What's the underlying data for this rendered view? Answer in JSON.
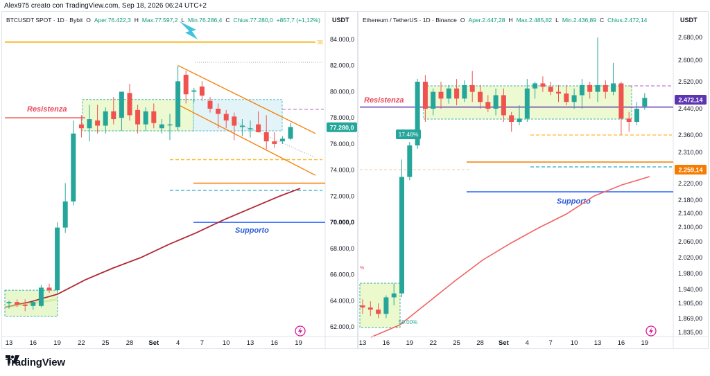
{
  "header": {
    "credit": "Alex975 creato con TradingView.com, Sep 18, 2026 06:24 UTC+2"
  },
  "footer": {
    "brand": "TradingView"
  },
  "colors": {
    "up": "#26a69a",
    "down": "#ef5350",
    "resistance": "#ef5350",
    "support": "#2962ff",
    "ma_left": "#b22833",
    "ma_right": "#f06262",
    "orange": "#f57c00",
    "gold": "#f9b928"
  },
  "chart_data": [
    {
      "type": "candlestick",
      "legend": {
        "symbol": "BTCUSDT SPOT · 1D · Bybit",
        "o_label": "O",
        "o": "Aper.76.422,3",
        "h_label": "H",
        "h": "Max.77.597,2",
        "l_label": "L",
        "l": "Min.76.286,4",
        "c_label": "C",
        "c": "Chius.77.280,0",
        "change": "+857,7 (+1,12%)"
      },
      "currency": "USDT",
      "y_ticks": [
        "84.000,0",
        "82.000,0",
        "80.000,0",
        "78.000,0",
        "76.000,0",
        "74.000,0",
        "72.000,0",
        "70.000,0",
        "68.000,0",
        "66.000,0",
        "64.000,0",
        "62.000,0"
      ],
      "y_tick_values": [
        84000,
        82000,
        80000,
        78000,
        76000,
        74000,
        72000,
        70000,
        68000,
        66000,
        64000,
        62000
      ],
      "ylim": [
        61500,
        85500
      ],
      "x_ticks": [
        "13",
        "16",
        "19",
        "22",
        "25",
        "28",
        "Set",
        "4",
        "7",
        "10",
        "13",
        "16",
        "19"
      ],
      "x_tick_index": [
        0,
        3,
        6,
        9,
        12,
        15,
        18,
        21,
        24,
        27,
        30,
        33,
        36
      ],
      "price_label": "77.280,0",
      "price_value": 77280,
      "resistance_label": "Resistenza",
      "resistance_value": 78000,
      "support_label": "Supporto",
      "support_value": 70000,
      "support_price_label": "70.000,0",
      "gold_label": "38",
      "gold_value": 83800,
      "dotted_value": 82250,
      "orange_dashed_value": 74800,
      "orange_solid_value": 73000,
      "cyan_dashed_value": 72450,
      "purple_dashed_value": 78650,
      "candles": [
        [
          0,
          63800,
          64000,
          63400,
          63900
        ],
        [
          1,
          63900,
          64100,
          63500,
          63700
        ],
        [
          2,
          63700,
          64100,
          63200,
          63600
        ],
        [
          3,
          63600,
          64000,
          63300,
          63900
        ],
        [
          4,
          63600,
          65200,
          63500,
          65000
        ],
        [
          5,
          65000,
          65300,
          64600,
          64800
        ],
        [
          6,
          64800,
          70000,
          64600,
          69600
        ],
        [
          7,
          69600,
          73000,
          69200,
          71600
        ],
        [
          8,
          71600,
          77800,
          71300,
          76800
        ],
        [
          9,
          77500,
          78200,
          76500,
          77200
        ],
        [
          10,
          77200,
          79000,
          76200,
          77900
        ],
        [
          11,
          77800,
          79000,
          76800,
          77400
        ],
        [
          12,
          77400,
          78800,
          76800,
          78500
        ],
        [
          13,
          78500,
          79600,
          77500,
          77900
        ],
        [
          14,
          78000,
          80000,
          77000,
          80000
        ],
        [
          15,
          79900,
          80600,
          77800,
          78200
        ],
        [
          16,
          78600,
          79000,
          76800,
          77500
        ],
        [
          17,
          77500,
          78800,
          77000,
          78500
        ],
        [
          18,
          78500,
          79100,
          77200,
          77600
        ],
        [
          19,
          77200,
          77900,
          76800,
          77500
        ],
        [
          20,
          77500,
          78300,
          76300,
          77500
        ],
        [
          21,
          77300,
          82000,
          77000,
          80800
        ],
        [
          22,
          81300,
          81600,
          79100,
          79800
        ],
        [
          23,
          80000,
          80300,
          79200,
          80100
        ],
        [
          24,
          80400,
          80800,
          79300,
          79700
        ],
        [
          25,
          79300,
          79600,
          78400,
          78700
        ],
        [
          26,
          78700,
          79100,
          77200,
          78300
        ],
        [
          27,
          78300,
          78600,
          77200,
          77800
        ],
        [
          28,
          78100,
          78400,
          76300,
          77400
        ],
        [
          29,
          77300,
          77900,
          76600,
          77400
        ],
        [
          30,
          77200,
          77800,
          76500,
          77200
        ],
        [
          31,
          77500,
          78500,
          76900,
          76900
        ],
        [
          32,
          76900,
          78200,
          75600,
          76200
        ],
        [
          33,
          76200,
          76900,
          75700,
          76000
        ],
        [
          34,
          76200,
          76600,
          76000,
          76400
        ],
        [
          35,
          76400,
          77600,
          76300,
          77300
        ]
      ]
    },
    {
      "type": "candlestick",
      "legend": {
        "symbol": "Ethereum / TetherUS · 1D · Binance",
        "o_label": "O",
        "o": "Aper.2.447,28",
        "h_label": "H",
        "h": "Max.2.485,82",
        "l_label": "L",
        "l": "Min.2.436,89",
        "c_label": "C",
        "c": "Chius.2.472,14"
      },
      "currency": "USDT",
      "y_ticks": [
        "2.680,00",
        "2.600,00",
        "2.520,00",
        "2.440,00",
        "2.360,00",
        "2.310,00",
        "2.260,00",
        "2.220,00",
        "2.180,00",
        "2.140,00",
        "2.100,00",
        "2.060,00",
        "2.020,00",
        "1.980,00",
        "1.940,00",
        "1.905,00",
        "1.869,00",
        "1.835,00"
      ],
      "y_tick_values": [
        2680,
        2600,
        2520,
        2440,
        2360,
        2310,
        2260,
        2220,
        2180,
        2140,
        2100,
        2060,
        2020,
        1980,
        1940,
        1905,
        1869,
        1835
      ],
      "x_ticks": [
        "13",
        "16",
        "19",
        "22",
        "25",
        "28",
        "Set",
        "4",
        "7",
        "10",
        "13",
        "16",
        "19"
      ],
      "x_tick_index": [
        0,
        3,
        6,
        9,
        12,
        15,
        18,
        21,
        24,
        27,
        30,
        33,
        36
      ],
      "price_label": "2.472,14",
      "level_label": "2.259,14",
      "resistance_label": "Resistenza",
      "support_label": "Supporto",
      "pct_label": "17.46%",
      "bottom_pct_label": "50.00%",
      "left_pct_label": "%",
      "candles": [
        [
          0,
          1900,
          1915,
          1880,
          1895
        ],
        [
          1,
          1895,
          1910,
          1875,
          1890
        ],
        [
          2,
          1890,
          1905,
          1870,
          1880
        ],
        [
          3,
          1880,
          1925,
          1870,
          1920
        ],
        [
          4,
          1920,
          1955,
          1900,
          1930
        ],
        [
          5,
          1930,
          2290,
          1920,
          2240
        ],
        [
          6,
          2240,
          2340,
          2230,
          2330
        ],
        [
          7,
          2330,
          2530,
          2320,
          2520
        ],
        [
          8,
          2520,
          2545,
          2400,
          2440
        ],
        [
          9,
          2440,
          2500,
          2420,
          2490
        ],
        [
          10,
          2490,
          2520,
          2440,
          2470
        ],
        [
          11,
          2470,
          2510,
          2455,
          2500
        ],
        [
          12,
          2500,
          2530,
          2450,
          2470
        ],
        [
          13,
          2470,
          2525,
          2460,
          2510
        ],
        [
          14,
          2510,
          2560,
          2460,
          2490
        ],
        [
          15,
          2490,
          2510,
          2440,
          2460
        ],
        [
          16,
          2460,
          2480,
          2430,
          2440
        ],
        [
          17,
          2440,
          2500,
          2420,
          2480
        ],
        [
          18,
          2480,
          2500,
          2400,
          2420
        ],
        [
          19,
          2420,
          2430,
          2370,
          2400
        ],
        [
          20,
          2400,
          2450,
          2390,
          2410
        ],
        [
          21,
          2410,
          2530,
          2400,
          2500
        ],
        [
          22,
          2500,
          2520,
          2470,
          2515
        ],
        [
          23,
          2515,
          2540,
          2490,
          2505
        ],
        [
          24,
          2505,
          2520,
          2480,
          2490
        ],
        [
          25,
          2490,
          2510,
          2460,
          2485
        ],
        [
          26,
          2485,
          2510,
          2450,
          2460
        ],
        [
          27,
          2460,
          2500,
          2440,
          2480
        ],
        [
          28,
          2480,
          2530,
          2440,
          2510
        ],
        [
          29,
          2510,
          2520,
          2470,
          2490
        ],
        [
          30,
          2490,
          2680,
          2460,
          2510
        ],
        [
          31,
          2510,
          2525,
          2470,
          2490
        ],
        [
          32,
          2490,
          2590,
          2480,
          2515
        ],
        [
          33,
          2515,
          2520,
          2360,
          2410
        ],
        [
          34,
          2410,
          2430,
          2370,
          2400
        ],
        [
          35,
          2400,
          2460,
          2390,
          2440
        ],
        [
          36,
          2447,
          2486,
          2437,
          2472
        ]
      ]
    }
  ]
}
